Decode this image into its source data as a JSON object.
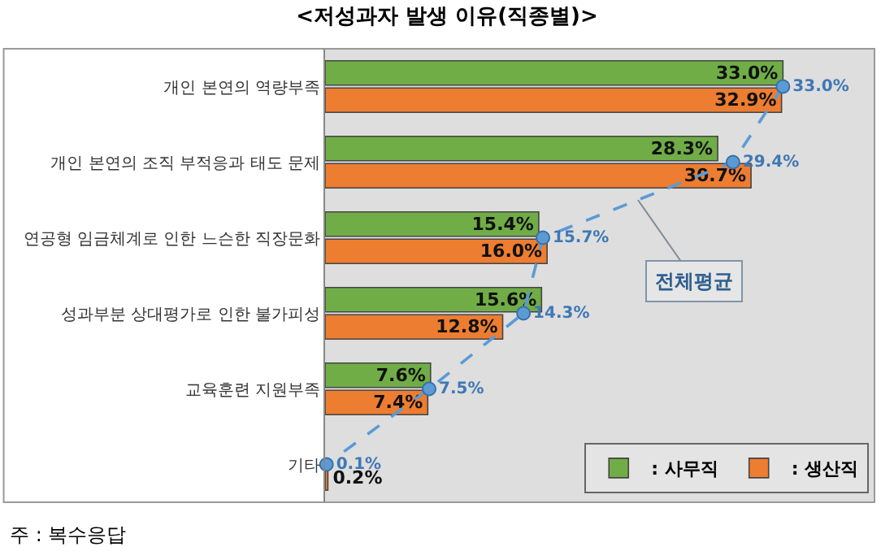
{
  "chart_data": {
    "type": "bar",
    "orientation": "horizontal",
    "title": "<저성과자 발생 이유(직종별)>",
    "categories": [
      "개인 본연의 역량부족",
      "개인 본연의 조직 부적응과 태도 문제",
      "연공형 임금체계로 인한 느슨한 직장문화",
      "성과부분 상대평가로 인한 불가피성",
      "교육훈련 지원부족",
      "기타"
    ],
    "series": [
      {
        "name": ": 사무직",
        "color": "#70ad47",
        "values": [
          33.0,
          28.3,
          15.4,
          15.6,
          7.6,
          null
        ],
        "value_labels": [
          "33.0%",
          "28.3%",
          "15.4%",
          "15.6%",
          "7.6%",
          null
        ]
      },
      {
        "name": ": 생산직",
        "color": "#ed7d31",
        "values": [
          32.9,
          30.7,
          16.0,
          12.8,
          7.4,
          0.2
        ],
        "value_labels": [
          "32.9%",
          "30.7%",
          "16.0%",
          "12.8%",
          "7.4%",
          "0.2%"
        ]
      },
      {
        "name": "전체평균",
        "type": "line",
        "color": "#5b9bd5",
        "line_style": "dashed",
        "marker": "circle",
        "values": [
          33.0,
          29.4,
          15.7,
          14.3,
          7.5,
          0.1
        ],
        "value_labels": [
          "33.0%",
          "29.4%",
          "15.7%",
          "14.3%",
          "7.5%",
          "0.1%"
        ]
      }
    ],
    "tick_labels": "y",
    "grid": false,
    "legend": "bottom right",
    "annotations": [
      "주 : 복수응답"
    ]
  }
}
